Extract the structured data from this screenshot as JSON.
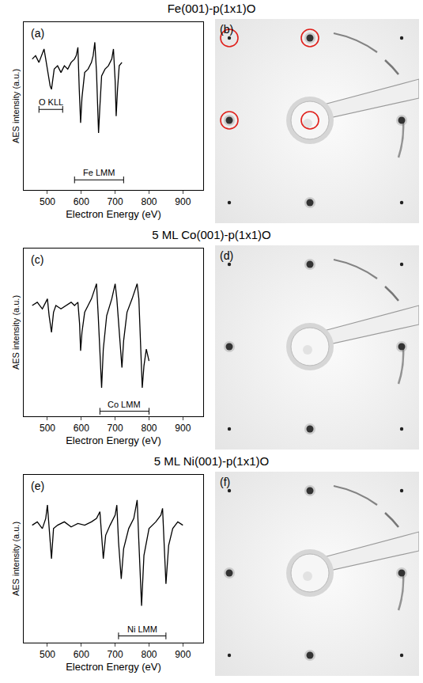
{
  "chart_data": [
    {
      "type": "line",
      "title": "Fe(001)-p(1x1)O",
      "letter": "(a)",
      "x_label": "Electron Energy (eV)",
      "y_label": "AES intensity (a.u.)",
      "color": "#000000",
      "x": [
        455,
        465,
        475,
        485,
        490,
        495,
        500,
        505,
        508,
        512,
        516,
        520,
        530,
        540,
        550,
        560,
        570,
        580,
        585,
        590,
        594,
        598,
        602,
        610,
        620,
        630,
        635,
        640,
        645,
        648,
        651,
        655,
        660,
        670,
        680,
        690,
        695,
        700,
        703,
        707,
        712,
        720
      ],
      "values": [
        78,
        80,
        76,
        82,
        84,
        78,
        72,
        66,
        62,
        60,
        66,
        72,
        74,
        70,
        74,
        72,
        76,
        78,
        80,
        85,
        60,
        40,
        55,
        70,
        72,
        76,
        80,
        88,
        70,
        45,
        34,
        50,
        68,
        72,
        74,
        78,
        84,
        65,
        44,
        60,
        74,
        76
      ],
      "xlim": [
        430,
        960
      ],
      "xticks": [
        500,
        600,
        700,
        800,
        900
      ],
      "ylim": [
        0,
        100
      ],
      "yticks": [],
      "tick_labels": "x",
      "annotations": [
        {
          "text": "O KLL",
          "x0": 475,
          "x1": 545,
          "y": 48
        },
        {
          "text": "Fe LMM",
          "x0": 580,
          "x1": 725,
          "y": 6
        }
      ]
    },
    {
      "type": "line",
      "title": "5 ML Co(001)-p(1x1)O",
      "letter": "(c)",
      "x_label": "Electron Energy (eV)",
      "y_label": "AES intensity (a.u.)",
      "color": "#000000",
      "x": [
        455,
        470,
        485,
        495,
        500,
        505,
        512,
        518,
        525,
        540,
        555,
        570,
        580,
        590,
        595,
        598,
        602,
        610,
        620,
        630,
        640,
        645,
        650,
        655,
        660,
        665,
        675,
        690,
        700,
        705,
        712,
        720,
        725,
        735,
        750,
        760,
        765,
        770,
        775,
        780,
        785,
        792,
        800
      ],
      "values": [
        66,
        68,
        64,
        68,
        70,
        60,
        50,
        62,
        66,
        64,
        66,
        68,
        66,
        68,
        55,
        39,
        50,
        62,
        66,
        70,
        76,
        79,
        60,
        35,
        17,
        40,
        60,
        70,
        79,
        70,
        50,
        29,
        45,
        62,
        70,
        76,
        79,
        70,
        45,
        17,
        30,
        40,
        33
      ],
      "xlim": [
        430,
        960
      ],
      "xticks": [
        500,
        600,
        700,
        800,
        900
      ],
      "ylim": [
        0,
        100
      ],
      "yticks": [],
      "tick_labels": "x",
      "annotations": [
        {
          "text": "Co LMM",
          "x0": 655,
          "x1": 800,
          "y": 3
        }
      ]
    },
    {
      "type": "line",
      "title": "5 ML Ni(001)-p(1x1)O",
      "letter": "(e)",
      "x_label": "Electron Energy (eV)",
      "y_label": "AES intensity (a.u.)",
      "color": "#000000",
      "x": [
        455,
        470,
        485,
        495,
        500,
        506,
        512,
        518,
        530,
        550,
        570,
        590,
        610,
        630,
        645,
        655,
        660,
        665,
        672,
        685,
        700,
        705,
        710,
        718,
        725,
        740,
        755,
        765,
        770,
        778,
        785,
        800,
        820,
        835,
        840,
        845,
        850,
        858,
        870,
        885,
        900
      ],
      "values": [
        70,
        72,
        68,
        74,
        82,
        64,
        50,
        68,
        70,
        72,
        69,
        71,
        70,
        72,
        74,
        78,
        65,
        50,
        64,
        70,
        76,
        82,
        60,
        38,
        56,
        68,
        74,
        85,
        60,
        22,
        52,
        68,
        72,
        76,
        80,
        58,
        35,
        58,
        68,
        72,
        70
      ],
      "xlim": [
        430,
        960
      ],
      "xticks": [
        500,
        600,
        700,
        800,
        900
      ],
      "ylim": [
        0,
        100
      ],
      "yticks": [],
      "tick_labels": "x",
      "annotations": [
        {
          "text": "Ni LMM",
          "x0": 710,
          "x1": 850,
          "y": 4
        }
      ]
    }
  ],
  "leed_panels": [
    {
      "letter": "(b)",
      "circled_spots": [
        [
          0,
          0
        ],
        [
          0,
          1
        ],
        [
          1,
          0
        ],
        [
          1,
          1
        ]
      ]
    },
    {
      "letter": "(d)",
      "circled_spots": []
    },
    {
      "letter": "(f)",
      "circled_spots": []
    }
  ]
}
